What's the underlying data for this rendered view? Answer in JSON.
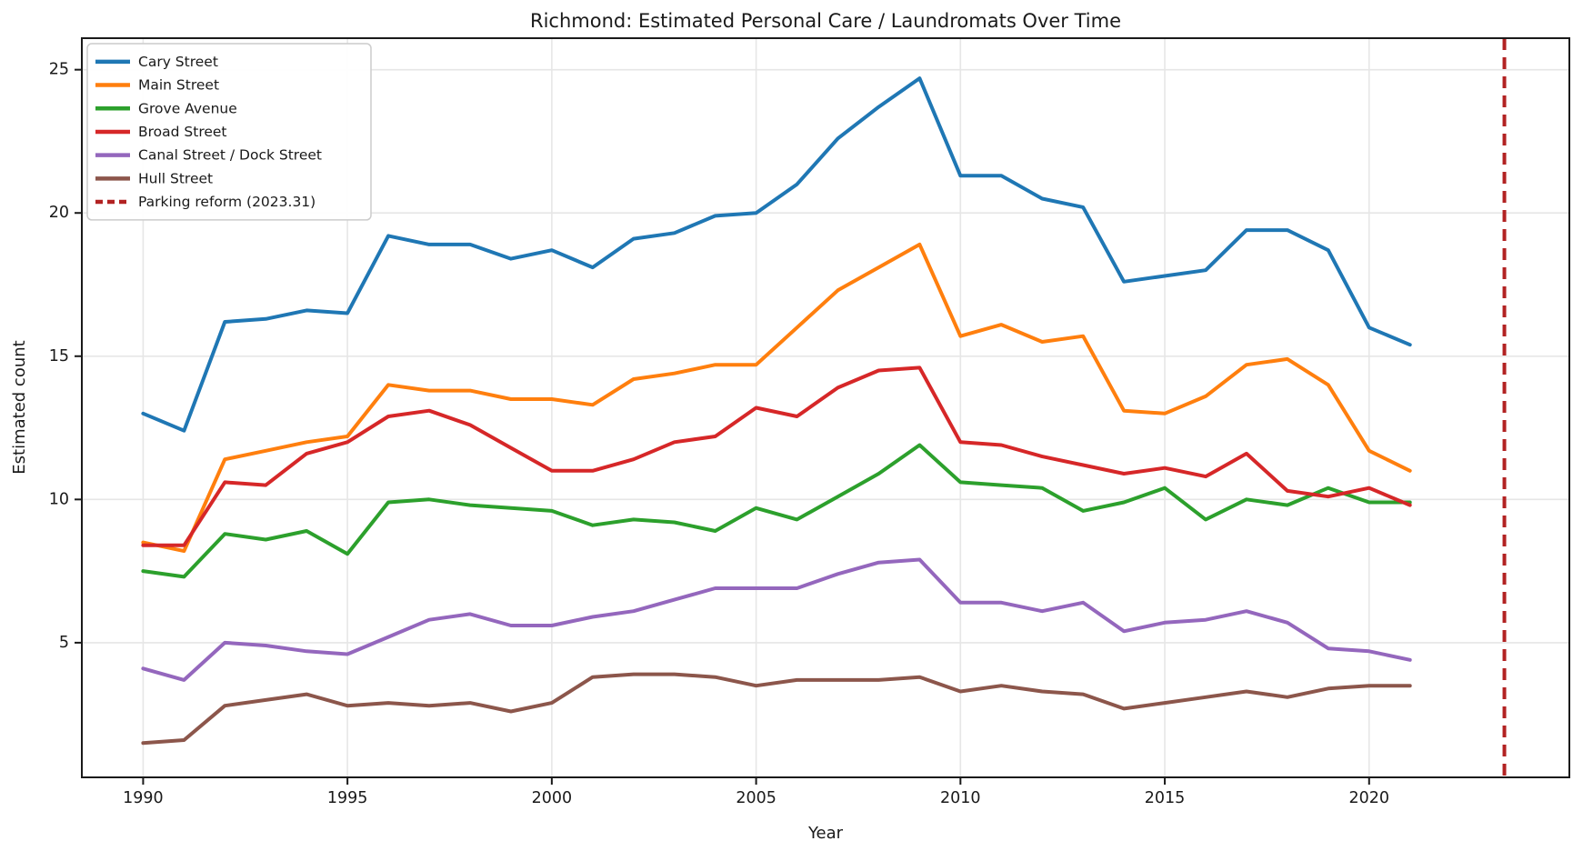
{
  "chart_data": {
    "type": "line",
    "title": "Richmond: Estimated Personal Care / Laundromats Over Time",
    "xlabel": "Year",
    "ylabel": "Estimated count",
    "grid": true,
    "legend_position": "upper left",
    "xlim": [
      1988.5,
      2024.9
    ],
    "ylim": [
      0.3,
      26.1
    ],
    "x_ticks": [
      1990,
      1995,
      2000,
      2005,
      2010,
      2015,
      2020
    ],
    "y_ticks": [
      5,
      10,
      15,
      20,
      25
    ],
    "x": [
      1990,
      1991,
      1992,
      1993,
      1994,
      1995,
      1996,
      1997,
      1998,
      1999,
      2000,
      2001,
      2002,
      2003,
      2004,
      2005,
      2006,
      2007,
      2008,
      2009,
      2010,
      2011,
      2012,
      2013,
      2014,
      2015,
      2016,
      2017,
      2018,
      2019,
      2020,
      2021
    ],
    "series": [
      {
        "name": "Cary Street",
        "color": "#1f77b4",
        "values": [
          13.0,
          12.4,
          16.2,
          16.3,
          16.6,
          16.5,
          19.2,
          18.9,
          18.9,
          18.4,
          18.7,
          18.1,
          19.1,
          19.3,
          19.9,
          20.0,
          21.0,
          22.6,
          23.7,
          24.7,
          21.3,
          21.3,
          20.5,
          20.2,
          17.6,
          17.8,
          18.0,
          19.4,
          19.4,
          18.7,
          16.0,
          15.4
        ]
      },
      {
        "name": "Main Street",
        "color": "#ff7f0e",
        "values": [
          8.5,
          8.2,
          11.4,
          11.7,
          12.0,
          12.2,
          14.0,
          13.8,
          13.8,
          13.5,
          13.5,
          13.3,
          14.2,
          14.4,
          14.7,
          14.7,
          16.0,
          17.3,
          18.1,
          18.9,
          15.7,
          16.1,
          15.5,
          15.7,
          13.1,
          13.0,
          13.6,
          14.7,
          14.9,
          14.0,
          11.7,
          11.0
        ]
      },
      {
        "name": "Grove Avenue",
        "color": "#2ca02c",
        "values": [
          7.5,
          7.3,
          8.8,
          8.6,
          8.9,
          8.1,
          9.9,
          10.0,
          9.8,
          9.7,
          9.6,
          9.1,
          9.3,
          9.2,
          8.9,
          9.7,
          9.3,
          10.1,
          10.9,
          11.9,
          10.6,
          10.5,
          10.4,
          9.6,
          9.9,
          10.4,
          9.3,
          10.0,
          9.8,
          10.4,
          9.9,
          9.9
        ]
      },
      {
        "name": "Broad Street",
        "color": "#d62728",
        "values": [
          8.4,
          8.4,
          10.6,
          10.5,
          11.6,
          12.0,
          12.9,
          13.1,
          12.6,
          11.8,
          11.0,
          11.0,
          11.4,
          12.0,
          12.2,
          13.2,
          12.9,
          13.9,
          14.5,
          14.6,
          12.0,
          11.9,
          11.5,
          11.2,
          10.9,
          11.1,
          10.8,
          11.6,
          10.3,
          10.1,
          10.4,
          9.8
        ]
      },
      {
        "name": "Canal Street / Dock Street",
        "color": "#9467bd",
        "values": [
          4.1,
          3.7,
          5.0,
          4.9,
          4.7,
          4.6,
          5.2,
          5.8,
          6.0,
          5.6,
          5.6,
          5.9,
          6.1,
          6.5,
          6.9,
          6.9,
          6.9,
          7.4,
          7.8,
          7.9,
          6.4,
          6.4,
          6.1,
          6.4,
          5.4,
          5.7,
          5.8,
          6.1,
          5.7,
          4.8,
          4.7,
          4.4
        ]
      },
      {
        "name": "Hull Street",
        "color": "#8c564b",
        "values": [
          1.5,
          1.6,
          2.8,
          3.0,
          3.2,
          2.8,
          2.9,
          2.8,
          2.9,
          2.6,
          2.9,
          3.8,
          3.9,
          3.9,
          3.8,
          3.5,
          3.7,
          3.7,
          3.7,
          3.8,
          3.3,
          3.5,
          3.3,
          3.2,
          2.7,
          2.9,
          3.1,
          3.3,
          3.1,
          3.4,
          3.5,
          3.5
        ]
      }
    ],
    "reform_line": {
      "label": "Parking reform (2023.31)",
      "x": 2023.31,
      "color": "#b22222",
      "style": "dashed"
    },
    "colors": {
      "grid": "#e6e6e6",
      "spine": "#1a1a1a",
      "legend_border": "#cccccc",
      "background": "#ffffff"
    }
  }
}
